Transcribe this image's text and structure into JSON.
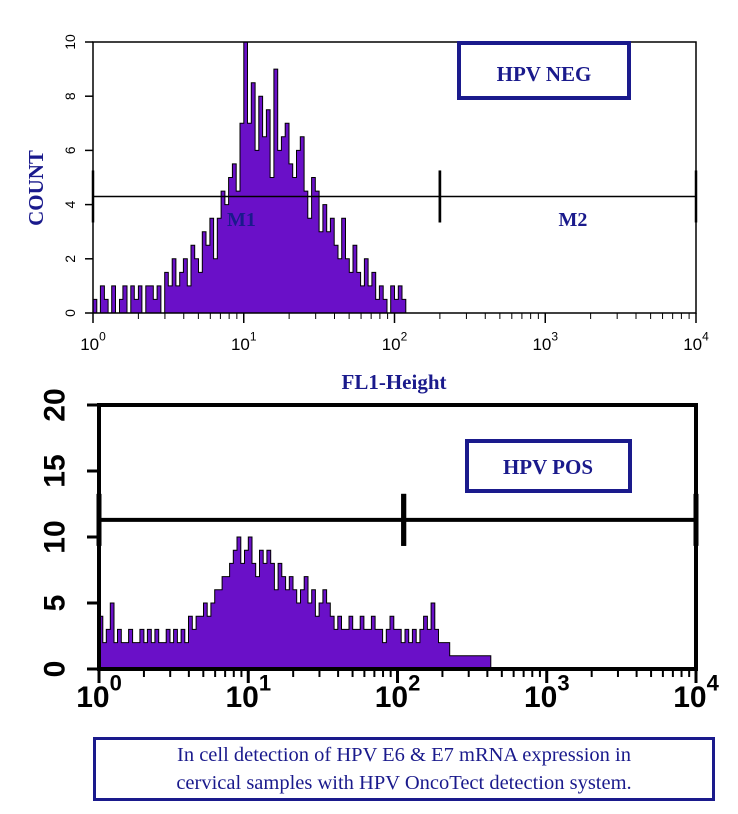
{
  "chart_data": [
    {
      "type": "histogram",
      "label_box": "HPV NEG",
      "ylabel": "COUNT",
      "xlabel": "FL1-Height",
      "x_scale": "log",
      "xlim": [
        1,
        10000
      ],
      "ylim": [
        0,
        10
      ],
      "x_ticks": [
        "10",
        "10",
        "10",
        "10",
        "10"
      ],
      "x_tick_exponents": [
        "0",
        "1",
        "2",
        "3",
        "4"
      ],
      "y_ticks": [
        "0",
        "2",
        "4",
        "6",
        "8",
        "10"
      ],
      "markers": [
        {
          "name": "M1",
          "start": 1,
          "end": 200,
          "level": 4.3
        },
        {
          "name": "M2",
          "start": 200,
          "end": 10000,
          "level": 4.3
        }
      ],
      "bins_x": [
        1.0,
        1.06,
        1.12,
        1.19,
        1.26,
        1.33,
        1.41,
        1.5,
        1.58,
        1.68,
        1.78,
        1.88,
        2.0,
        2.11,
        2.24,
        2.37,
        2.51,
        2.66,
        2.82,
        2.99,
        3.16,
        3.35,
        3.55,
        3.76,
        3.98,
        4.22,
        4.47,
        4.73,
        5.01,
        5.31,
        5.62,
        5.96,
        6.31,
        6.68,
        7.08,
        7.5,
        7.94,
        8.41,
        8.91,
        9.44,
        10.0,
        10.59,
        11.22,
        11.89,
        12.59,
        13.34,
        14.13,
        14.96,
        15.85,
        16.79,
        17.78,
        18.84,
        19.95,
        21.13,
        22.39,
        23.71,
        25.12,
        26.61,
        28.18,
        29.85,
        31.62,
        33.5,
        35.48,
        37.58,
        39.81,
        42.17,
        44.67,
        47.32,
        50.12,
        53.09,
        56.23,
        59.57,
        63.1,
        66.83,
        70.79,
        74.99,
        79.43,
        84.14,
        89.13,
        94.41,
        100.0,
        105.93,
        112.2,
        118.85,
        125.89
      ],
      "counts": [
        0.5,
        0,
        1,
        0.5,
        0,
        1,
        0,
        0.5,
        1,
        0,
        1,
        0.5,
        1,
        0,
        1,
        1,
        0.5,
        1,
        0,
        1.5,
        1,
        2,
        1,
        1.5,
        2,
        1,
        2.5,
        2,
        1.5,
        3,
        2.5,
        3.5,
        2,
        3.5,
        4.5,
        4,
        5,
        5.5,
        4.5,
        7,
        10,
        7,
        8.5,
        6,
        8,
        6.5,
        7.5,
        5,
        9,
        6,
        6.5,
        7,
        5.5,
        5,
        6,
        6.5,
        4.5,
        3.5,
        5,
        4.5,
        3,
        4,
        3,
        3.5,
        2.5,
        2,
        3.5,
        2,
        1.5,
        2.5,
        1.5,
        1,
        2,
        1,
        1.5,
        0.5,
        1,
        0.5,
        0,
        1,
        0.5,
        1,
        0.5,
        0,
        0
      ]
    },
    {
      "type": "histogram",
      "label_box": "HPV POS",
      "x_scale": "log",
      "xlim": [
        1,
        10000
      ],
      "ylim": [
        0,
        20
      ],
      "x_ticks": [
        "10",
        "10",
        "10",
        "10",
        "10"
      ],
      "x_tick_exponents": [
        "0",
        "1",
        "2",
        "3",
        "4"
      ],
      "y_ticks": [
        "0",
        "5",
        "10",
        "15",
        "20"
      ],
      "markers": [
        {
          "name": "",
          "start": 1,
          "end": 110,
          "level": 11.3
        },
        {
          "name": "",
          "start": 110,
          "end": 10000,
          "level": 11.3
        }
      ],
      "bins_x": [
        1.0,
        1.06,
        1.12,
        1.19,
        1.26,
        1.33,
        1.41,
        1.5,
        1.58,
        1.68,
        1.78,
        1.88,
        2.0,
        2.11,
        2.24,
        2.37,
        2.51,
        2.66,
        2.82,
        2.99,
        3.16,
        3.35,
        3.55,
        3.76,
        3.98,
        4.22,
        4.47,
        4.73,
        5.01,
        5.31,
        5.62,
        5.96,
        6.31,
        6.68,
        7.08,
        7.5,
        7.94,
        8.41,
        8.91,
        9.44,
        10.0,
        10.59,
        11.22,
        11.89,
        12.59,
        13.34,
        14.13,
        14.96,
        15.85,
        16.79,
        17.78,
        18.84,
        19.95,
        21.13,
        22.39,
        23.71,
        25.12,
        26.61,
        28.18,
        29.85,
        31.62,
        33.5,
        35.48,
        37.58,
        39.81,
        42.17,
        44.67,
        47.32,
        50.12,
        53.09,
        56.23,
        59.57,
        63.1,
        66.83,
        70.79,
        74.99,
        79.43,
        84.14,
        89.13,
        94.41,
        100.0,
        105.93,
        112.2,
        118.85,
        125.89,
        133.35,
        141.25,
        149.62,
        158.49,
        167.88,
        177.83,
        188.36,
        199.53,
        211.35,
        223.87,
        237.14,
        251.19,
        266.07,
        281.84,
        298.54,
        316.23,
        334.97,
        354.81,
        375.84,
        398.11
      ],
      "counts": [
        4,
        2,
        3,
        5,
        2,
        3,
        2,
        2,
        3,
        2,
        2,
        3,
        2,
        3,
        2,
        3,
        2,
        2,
        3,
        2,
        3,
        2,
        3,
        2,
        4,
        3,
        4,
        4,
        5,
        4,
        5,
        6,
        6,
        7,
        7,
        8,
        9,
        10,
        8,
        9,
        10,
        8,
        7,
        9,
        8,
        9,
        8,
        6,
        8,
        7,
        6,
        7,
        6,
        5,
        6,
        7,
        5,
        6,
        4,
        5,
        6,
        5,
        4,
        3,
        4,
        3,
        3,
        4,
        3,
        3,
        4,
        3,
        3,
        4,
        3,
        3,
        2,
        3,
        4,
        3,
        3,
        2,
        3,
        2,
        3,
        2,
        3,
        4,
        3,
        5,
        3,
        2,
        2,
        2,
        1,
        1,
        1,
        1,
        1,
        1,
        1,
        1,
        1,
        1,
        1
      ]
    }
  ],
  "caption": {
    "line1": "In cell detection of HPV E6 & E7 mRNA expression in",
    "line2": "cervical samples with HPV OncoTect detection system."
  },
  "colors": {
    "fill": "#6a10c8",
    "label_text": "#1a1a8c",
    "label_border": "#1a1a8c",
    "axis": "#000000"
  }
}
